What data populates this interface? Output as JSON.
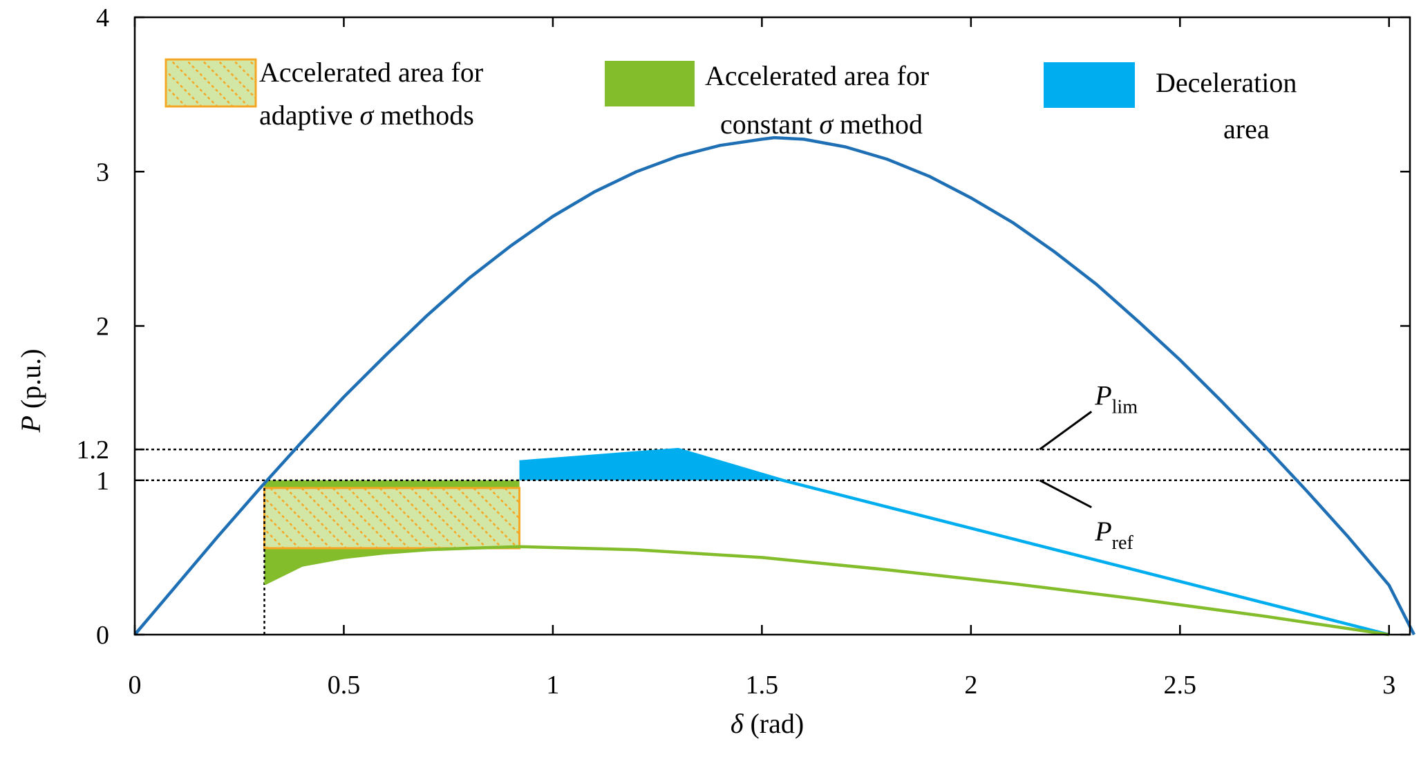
{
  "chart_data": {
    "type": "line",
    "xlabel": {
      "symbol": "δ",
      "text": " (rad)"
    },
    "ylabel": {
      "symbol": "P",
      "text": " (p.u.)"
    },
    "xlim": [
      0,
      3.05
    ],
    "ylim": [
      0,
      4
    ],
    "xticks": [
      {
        "value": 0,
        "label": "0"
      },
      {
        "value": 0.5,
        "label": "0.5"
      },
      {
        "value": 1,
        "label": "1"
      },
      {
        "value": 1.5,
        "label": "1.5"
      },
      {
        "value": 2,
        "label": "2"
      },
      {
        "value": 2.5,
        "label": "2.5"
      },
      {
        "value": 3,
        "label": "3"
      }
    ],
    "yticks": [
      {
        "value": 0,
        "label": "0"
      },
      {
        "value": 1,
        "label": "1"
      },
      {
        "value": 1.2,
        "label": "1.2"
      },
      {
        "value": 2,
        "label": "2"
      },
      {
        "value": 3,
        "label": "3"
      },
      {
        "value": 4,
        "label": "4"
      }
    ],
    "grid": false,
    "legend_position": "top",
    "legend": [
      {
        "key": "adaptive",
        "line1": "Accelerated area for",
        "line2_pre": "adaptive ",
        "line2_sym": "σ",
        "line2_post": " methods",
        "color": "#f5a623"
      },
      {
        "key": "constant",
        "line1": "Accelerated area for",
        "line2_pre": "constant ",
        "line2_sym": "σ",
        "line2_post": " method",
        "color": "#84bd2b"
      },
      {
        "key": "decel",
        "line1": "Deceleration",
        "line2_pre": "area",
        "line2_sym": "",
        "line2_post": "",
        "color": "#00aeef"
      }
    ],
    "series": [
      {
        "key": "power-angle-curve",
        "color": "#1f6fb5",
        "x": [
          0,
          0.1,
          0.2,
          0.3,
          0.4,
          0.5,
          0.6,
          0.7,
          0.8,
          0.9,
          1.0,
          1.1,
          1.2,
          1.3,
          1.4,
          1.5,
          1.53,
          1.6,
          1.7,
          1.8,
          1.9,
          2.0,
          2.1,
          2.2,
          2.3,
          2.4,
          2.5,
          2.6,
          2.7,
          2.8,
          2.9,
          3.0,
          3.06
        ],
        "y": [
          0,
          0.32,
          0.64,
          0.95,
          1.25,
          1.54,
          1.81,
          2.07,
          2.31,
          2.52,
          2.71,
          2.87,
          3.0,
          3.1,
          3.17,
          3.21,
          3.22,
          3.21,
          3.16,
          3.08,
          2.97,
          2.83,
          2.67,
          2.48,
          2.27,
          2.03,
          1.78,
          1.51,
          1.23,
          0.94,
          0.64,
          0.32,
          0.0
        ]
      },
      {
        "key": "p-ref-curve",
        "color": "#00aeef",
        "x": [
          0.92,
          1.3,
          1.55,
          3.0
        ],
        "y": [
          1.12,
          1.2,
          1.0,
          0.0
        ]
      },
      {
        "key": "constant-sigma-curve",
        "color": "#84bd2b",
        "x": [
          0.31,
          0.4,
          0.5,
          0.6,
          0.7,
          0.8,
          0.92,
          1.2,
          1.5,
          1.8,
          2.1,
          2.4,
          2.7,
          3.0
        ],
        "y": [
          0.33,
          0.45,
          0.5,
          0.53,
          0.55,
          0.56,
          0.57,
          0.55,
          0.5,
          0.42,
          0.33,
          0.23,
          0.12,
          0.0
        ]
      }
    ],
    "reference_lines": [
      {
        "key": "p-lim-line",
        "y": 1.2
      },
      {
        "key": "p-ref-line",
        "y": 1.0
      }
    ],
    "guide_line": {
      "x": 0.31,
      "y_from": 0,
      "y_to": 1.0
    },
    "areas": {
      "constant_accel": {
        "x_from": 0.31,
        "x_to": 0.92,
        "y_top": 1.0
      },
      "adaptive_accel": {
        "x_from": 0.31,
        "x_to": 0.92,
        "y_top": 0.95,
        "y_bottom": 0.56
      },
      "deceleration": {
        "x": [
          0.92,
          1.3,
          1.55,
          0.92
        ],
        "y": [
          1.12,
          1.2,
          1.0,
          1.0
        ]
      }
    },
    "annotations": [
      {
        "key": "p-lim",
        "symbol": "P",
        "sub": "lim",
        "x": 2.28,
        "y": 1.49
      },
      {
        "key": "p-ref",
        "symbol": "P",
        "sub": "ref",
        "x": 2.28,
        "y": 0.61
      }
    ]
  }
}
